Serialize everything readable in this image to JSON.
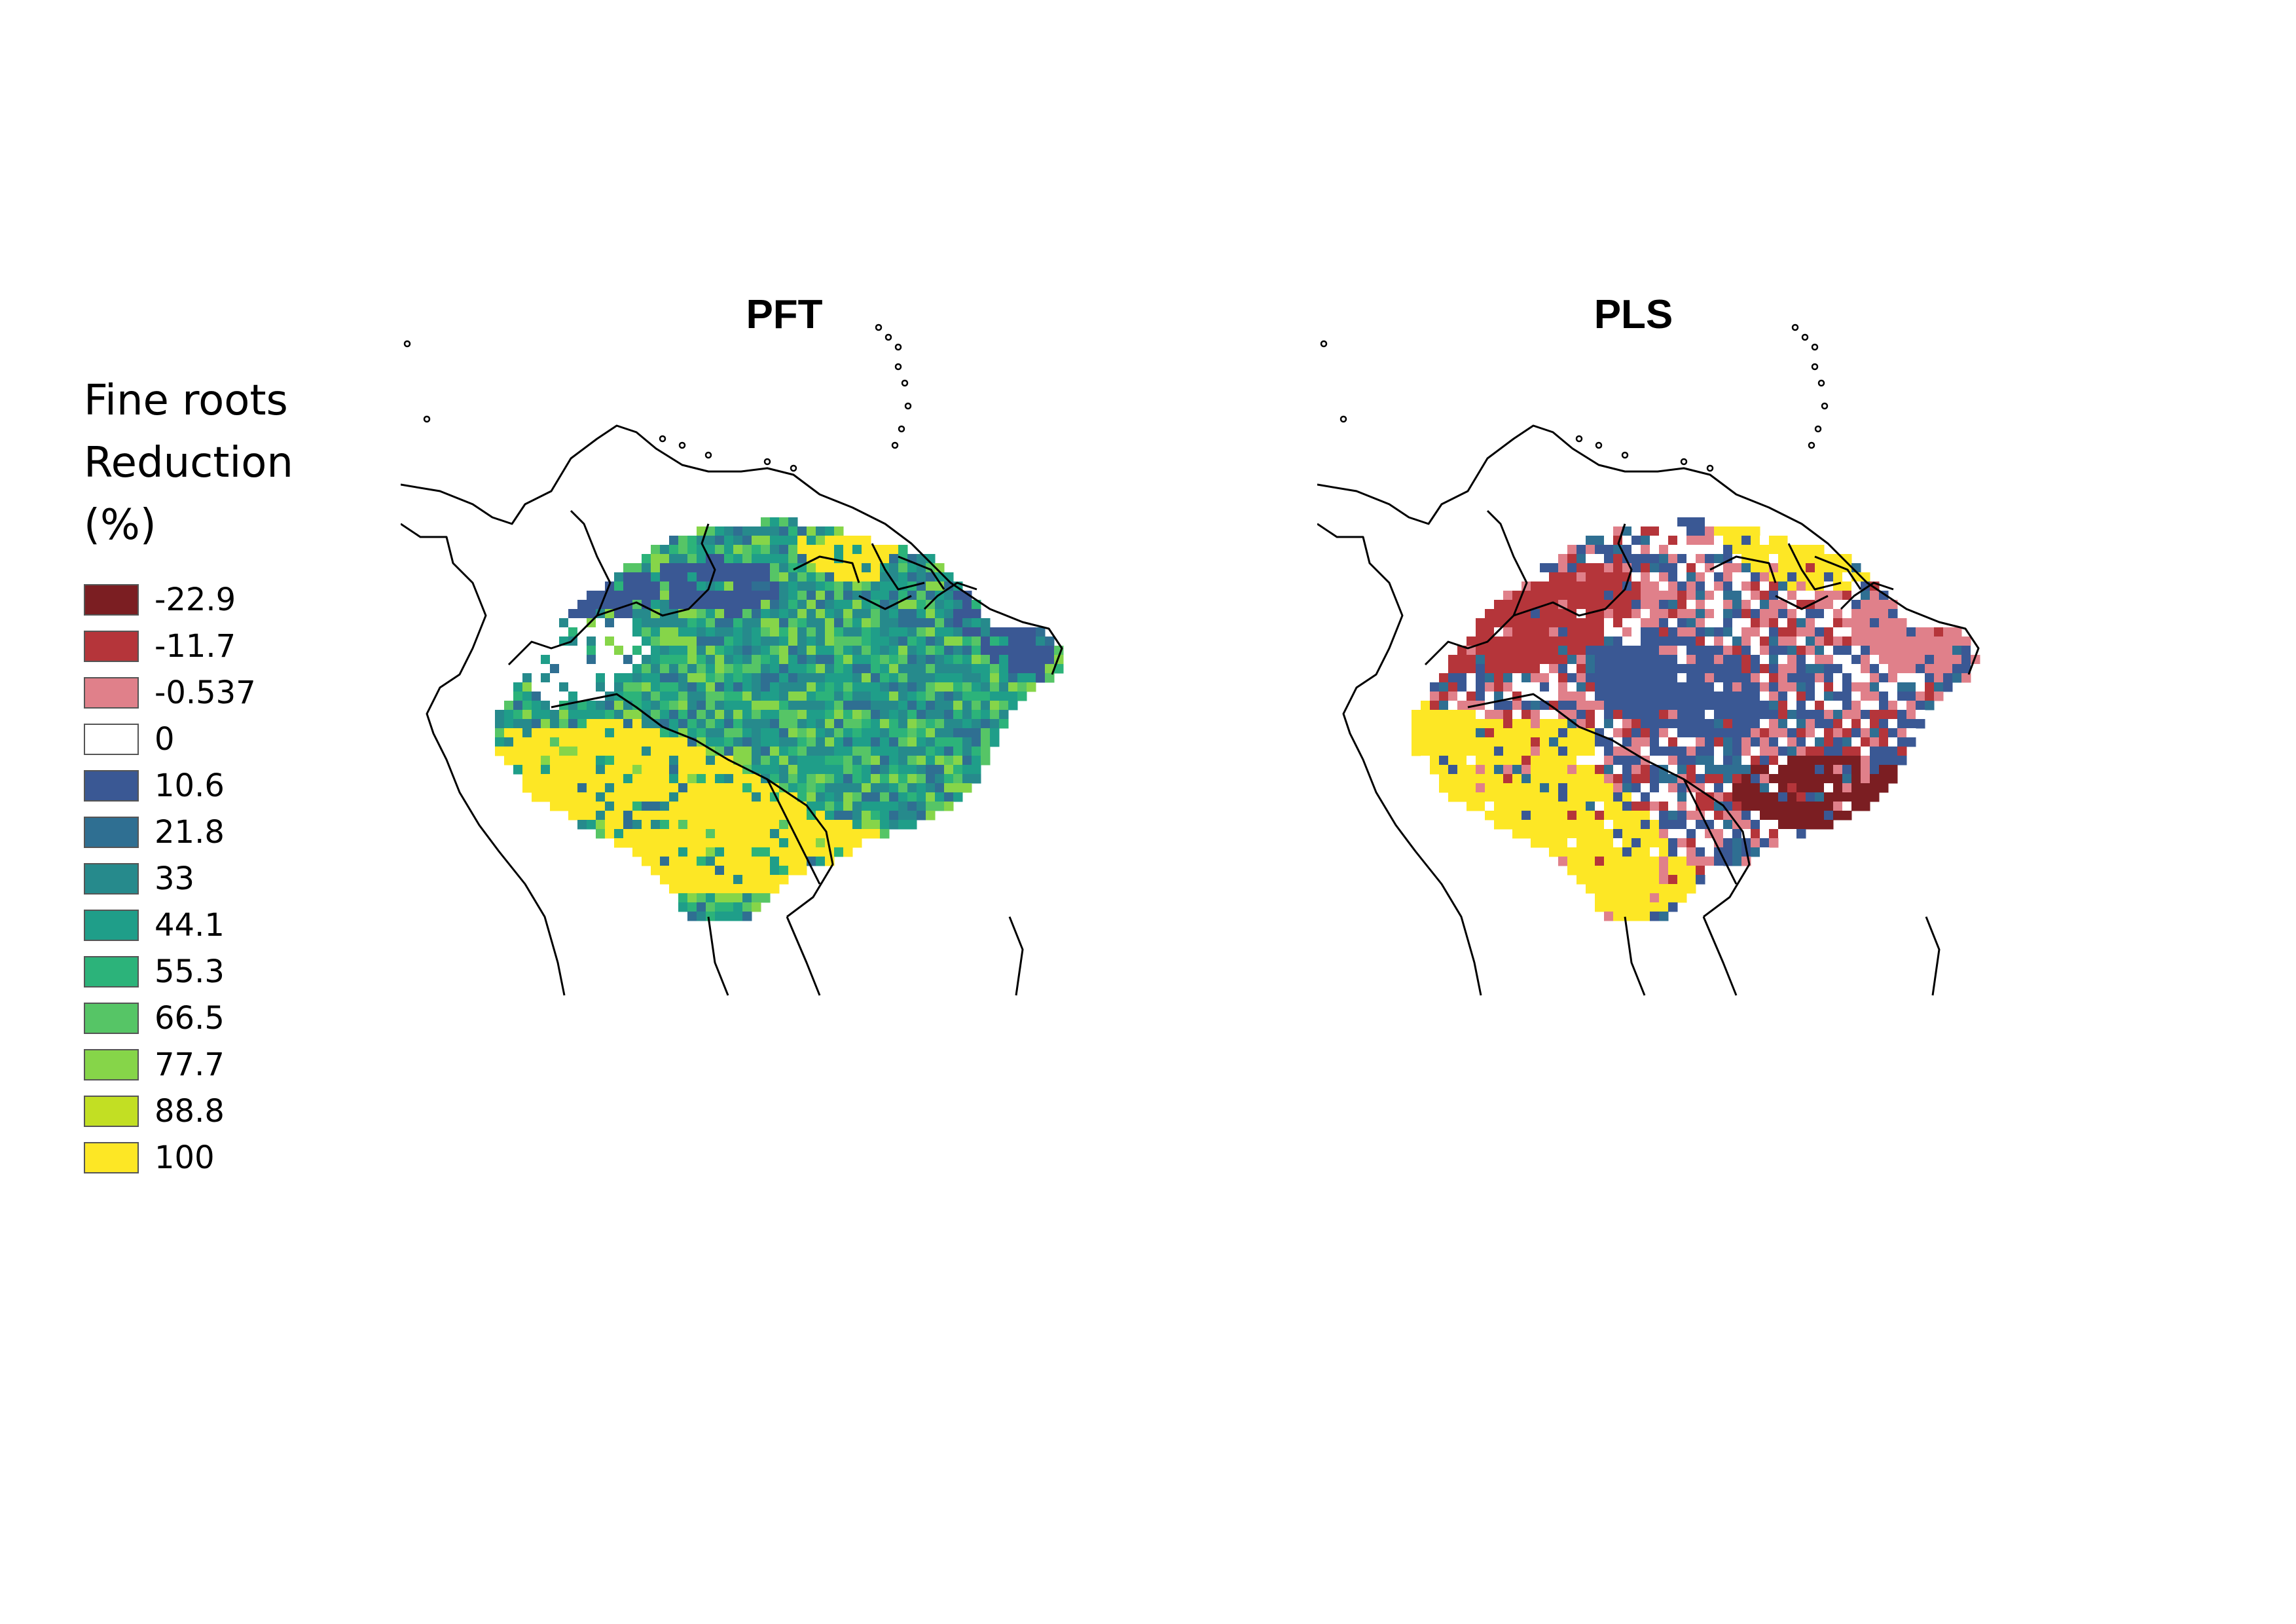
{
  "legend": {
    "title_lines": [
      "Fine roots",
      "Reduction",
      "(%)"
    ],
    "items": [
      {
        "label": "-22.9",
        "color": "#7b1e22"
      },
      {
        "label": "-11.7",
        "color": "#b5353a"
      },
      {
        "label": "-0.537",
        "color": "#e0808a"
      },
      {
        "label": "0",
        "color": "#ffffff"
      },
      {
        "label": "10.6",
        "color": "#3a5894"
      },
      {
        "label": "21.8",
        "color": "#2f6f92"
      },
      {
        "label": "33",
        "color": "#268a8c"
      },
      {
        "label": "44.1",
        "color": "#1f9e89"
      },
      {
        "label": "55.3",
        "color": "#2cb37a"
      },
      {
        "label": "66.5",
        "color": "#56c566"
      },
      {
        "label": "77.7",
        "color": "#86d549"
      },
      {
        "label": "88.8",
        "color": "#c2df23"
      },
      {
        "label": "100",
        "color": "#fde725"
      }
    ]
  },
  "panels": [
    {
      "title": "PFT"
    },
    {
      "title": "PLS"
    }
  ]
}
